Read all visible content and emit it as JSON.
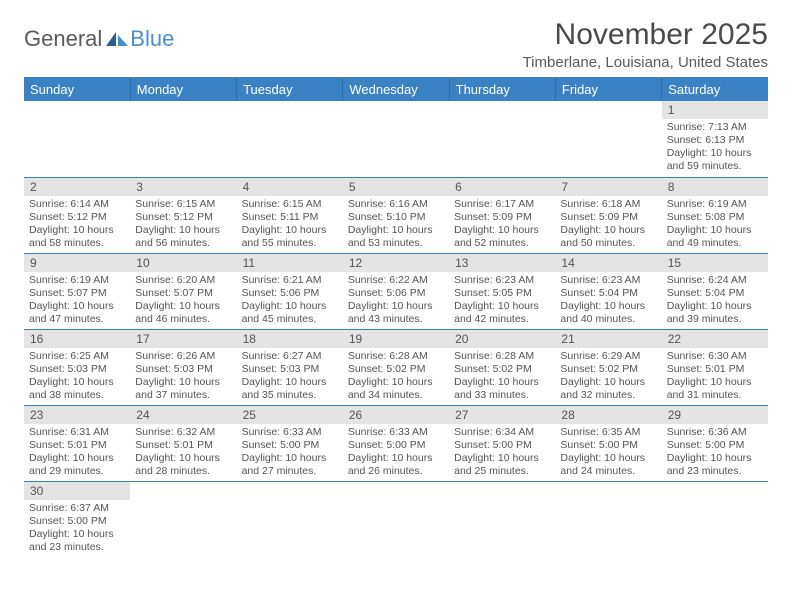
{
  "logo": {
    "part1": "General",
    "part2": "Blue"
  },
  "title": "November 2025",
  "location": "Timberlane, Louisiana, United States",
  "colors": {
    "header_bg": "#3b82c4",
    "header_fg": "#ffffff",
    "border": "#3b7fbf",
    "daynum_bg": "#e4e4e4",
    "text": "#555555",
    "logo_gray": "#5a5a5a",
    "logo_blue": "#4a8fc9"
  },
  "weekdays": [
    "Sunday",
    "Monday",
    "Tuesday",
    "Wednesday",
    "Thursday",
    "Friday",
    "Saturday"
  ],
  "cells": [
    {
      "blank": true
    },
    {
      "blank": true
    },
    {
      "blank": true
    },
    {
      "blank": true
    },
    {
      "blank": true
    },
    {
      "blank": true
    },
    {
      "n": "1",
      "sr": "7:13 AM",
      "ss": "6:13 PM",
      "dl": "10 hours and 59 minutes."
    },
    {
      "n": "2",
      "sr": "6:14 AM",
      "ss": "5:12 PM",
      "dl": "10 hours and 58 minutes."
    },
    {
      "n": "3",
      "sr": "6:15 AM",
      "ss": "5:12 PM",
      "dl": "10 hours and 56 minutes."
    },
    {
      "n": "4",
      "sr": "6:15 AM",
      "ss": "5:11 PM",
      "dl": "10 hours and 55 minutes."
    },
    {
      "n": "5",
      "sr": "6:16 AM",
      "ss": "5:10 PM",
      "dl": "10 hours and 53 minutes."
    },
    {
      "n": "6",
      "sr": "6:17 AM",
      "ss": "5:09 PM",
      "dl": "10 hours and 52 minutes."
    },
    {
      "n": "7",
      "sr": "6:18 AM",
      "ss": "5:09 PM",
      "dl": "10 hours and 50 minutes."
    },
    {
      "n": "8",
      "sr": "6:19 AM",
      "ss": "5:08 PM",
      "dl": "10 hours and 49 minutes."
    },
    {
      "n": "9",
      "sr": "6:19 AM",
      "ss": "5:07 PM",
      "dl": "10 hours and 47 minutes."
    },
    {
      "n": "10",
      "sr": "6:20 AM",
      "ss": "5:07 PM",
      "dl": "10 hours and 46 minutes."
    },
    {
      "n": "11",
      "sr": "6:21 AM",
      "ss": "5:06 PM",
      "dl": "10 hours and 45 minutes."
    },
    {
      "n": "12",
      "sr": "6:22 AM",
      "ss": "5:06 PM",
      "dl": "10 hours and 43 minutes."
    },
    {
      "n": "13",
      "sr": "6:23 AM",
      "ss": "5:05 PM",
      "dl": "10 hours and 42 minutes."
    },
    {
      "n": "14",
      "sr": "6:23 AM",
      "ss": "5:04 PM",
      "dl": "10 hours and 40 minutes."
    },
    {
      "n": "15",
      "sr": "6:24 AM",
      "ss": "5:04 PM",
      "dl": "10 hours and 39 minutes."
    },
    {
      "n": "16",
      "sr": "6:25 AM",
      "ss": "5:03 PM",
      "dl": "10 hours and 38 minutes."
    },
    {
      "n": "17",
      "sr": "6:26 AM",
      "ss": "5:03 PM",
      "dl": "10 hours and 37 minutes."
    },
    {
      "n": "18",
      "sr": "6:27 AM",
      "ss": "5:03 PM",
      "dl": "10 hours and 35 minutes."
    },
    {
      "n": "19",
      "sr": "6:28 AM",
      "ss": "5:02 PM",
      "dl": "10 hours and 34 minutes."
    },
    {
      "n": "20",
      "sr": "6:28 AM",
      "ss": "5:02 PM",
      "dl": "10 hours and 33 minutes."
    },
    {
      "n": "21",
      "sr": "6:29 AM",
      "ss": "5:02 PM",
      "dl": "10 hours and 32 minutes."
    },
    {
      "n": "22",
      "sr": "6:30 AM",
      "ss": "5:01 PM",
      "dl": "10 hours and 31 minutes."
    },
    {
      "n": "23",
      "sr": "6:31 AM",
      "ss": "5:01 PM",
      "dl": "10 hours and 29 minutes."
    },
    {
      "n": "24",
      "sr": "6:32 AM",
      "ss": "5:01 PM",
      "dl": "10 hours and 28 minutes."
    },
    {
      "n": "25",
      "sr": "6:33 AM",
      "ss": "5:00 PM",
      "dl": "10 hours and 27 minutes."
    },
    {
      "n": "26",
      "sr": "6:33 AM",
      "ss": "5:00 PM",
      "dl": "10 hours and 26 minutes."
    },
    {
      "n": "27",
      "sr": "6:34 AM",
      "ss": "5:00 PM",
      "dl": "10 hours and 25 minutes."
    },
    {
      "n": "28",
      "sr": "6:35 AM",
      "ss": "5:00 PM",
      "dl": "10 hours and 24 minutes."
    },
    {
      "n": "29",
      "sr": "6:36 AM",
      "ss": "5:00 PM",
      "dl": "10 hours and 23 minutes."
    },
    {
      "n": "30",
      "sr": "6:37 AM",
      "ss": "5:00 PM",
      "dl": "10 hours and 23 minutes."
    },
    {
      "blank": true
    },
    {
      "blank": true
    },
    {
      "blank": true
    },
    {
      "blank": true
    },
    {
      "blank": true
    },
    {
      "blank": true
    }
  ],
  "labels": {
    "sunrise": "Sunrise:",
    "sunset": "Sunset:",
    "daylight": "Daylight:"
  }
}
